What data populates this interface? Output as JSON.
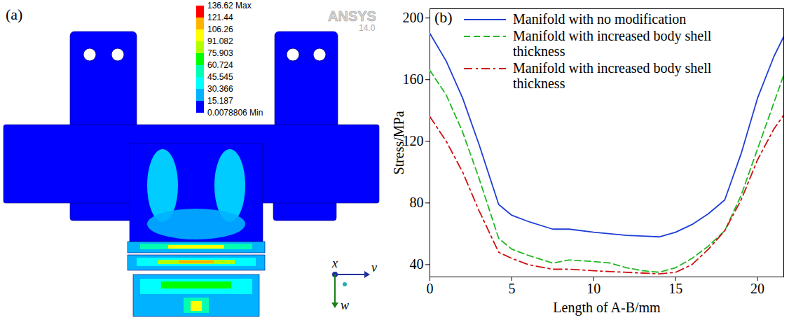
{
  "chart_data": [
    {
      "type": "contour",
      "label": "(a)",
      "software": "ANSYS",
      "version": "14.0",
      "axis_labels": [
        "x",
        "v",
        "w"
      ],
      "colorbar": {
        "range": [
          0.0078806,
          136.62
        ],
        "ticks": [
          {
            "value": 136.62,
            "label": "136.62 Max"
          },
          121.44,
          106.26,
          91.082,
          75.903,
          60.724,
          45.545,
          30.366,
          15.187,
          {
            "value": 0.0078806,
            "label": "0.0078806 Min"
          }
        ],
        "colors": [
          "#ff0000",
          "#ffb200",
          "#ffff00",
          "#b2ff00",
          "#00ff00",
          "#00ffb2",
          "#00ffff",
          "#00b2ff",
          "#0000ff"
        ]
      }
    },
    {
      "type": "line",
      "label": "(b)",
      "x_label": "Length of A-B/mm",
      "y_label": "Stress/MPa",
      "xlim": [
        0,
        21.6
      ],
      "xticks": [
        0,
        5,
        10,
        15,
        20
      ],
      "ylim": [
        32,
        206
      ],
      "yticks": [
        40,
        80,
        120,
        160,
        200
      ],
      "grid": false,
      "legend": "top",
      "x": [
        0,
        1,
        2,
        3,
        4.2,
        5,
        6,
        7.5,
        8.5,
        10,
        11,
        12,
        13,
        14,
        15,
        16,
        17,
        18,
        19,
        20,
        21,
        21.6
      ],
      "series": [
        {
          "name": "Manifold with no modification",
          "color": "#1f3fd6",
          "line_style": "solid",
          "values": [
            190,
            172,
            148,
            118,
            79,
            72,
            68,
            63,
            63,
            61,
            60,
            59,
            58.5,
            58,
            61,
            66,
            73,
            82,
            112,
            148,
            175,
            188
          ]
        },
        {
          "name": "Manifold with increased body shell thickness",
          "color": "#22b822",
          "line_style": "dashed",
          "values": [
            166,
            150,
            126,
            96,
            57,
            50,
            46,
            41,
            43,
            42,
            41,
            38,
            36,
            35,
            38,
            44,
            52,
            62,
            85,
            115,
            145,
            163
          ]
        },
        {
          "name": "Manifold with increased body shell thickness",
          "color": "#cc1111",
          "line_style": "dashdot",
          "values": [
            136,
            120,
            100,
            75,
            48,
            44,
            40,
            37,
            37,
            36,
            35.5,
            35,
            34.5,
            34,
            35,
            40,
            50,
            62,
            82,
            108,
            128,
            137
          ]
        }
      ]
    }
  ]
}
